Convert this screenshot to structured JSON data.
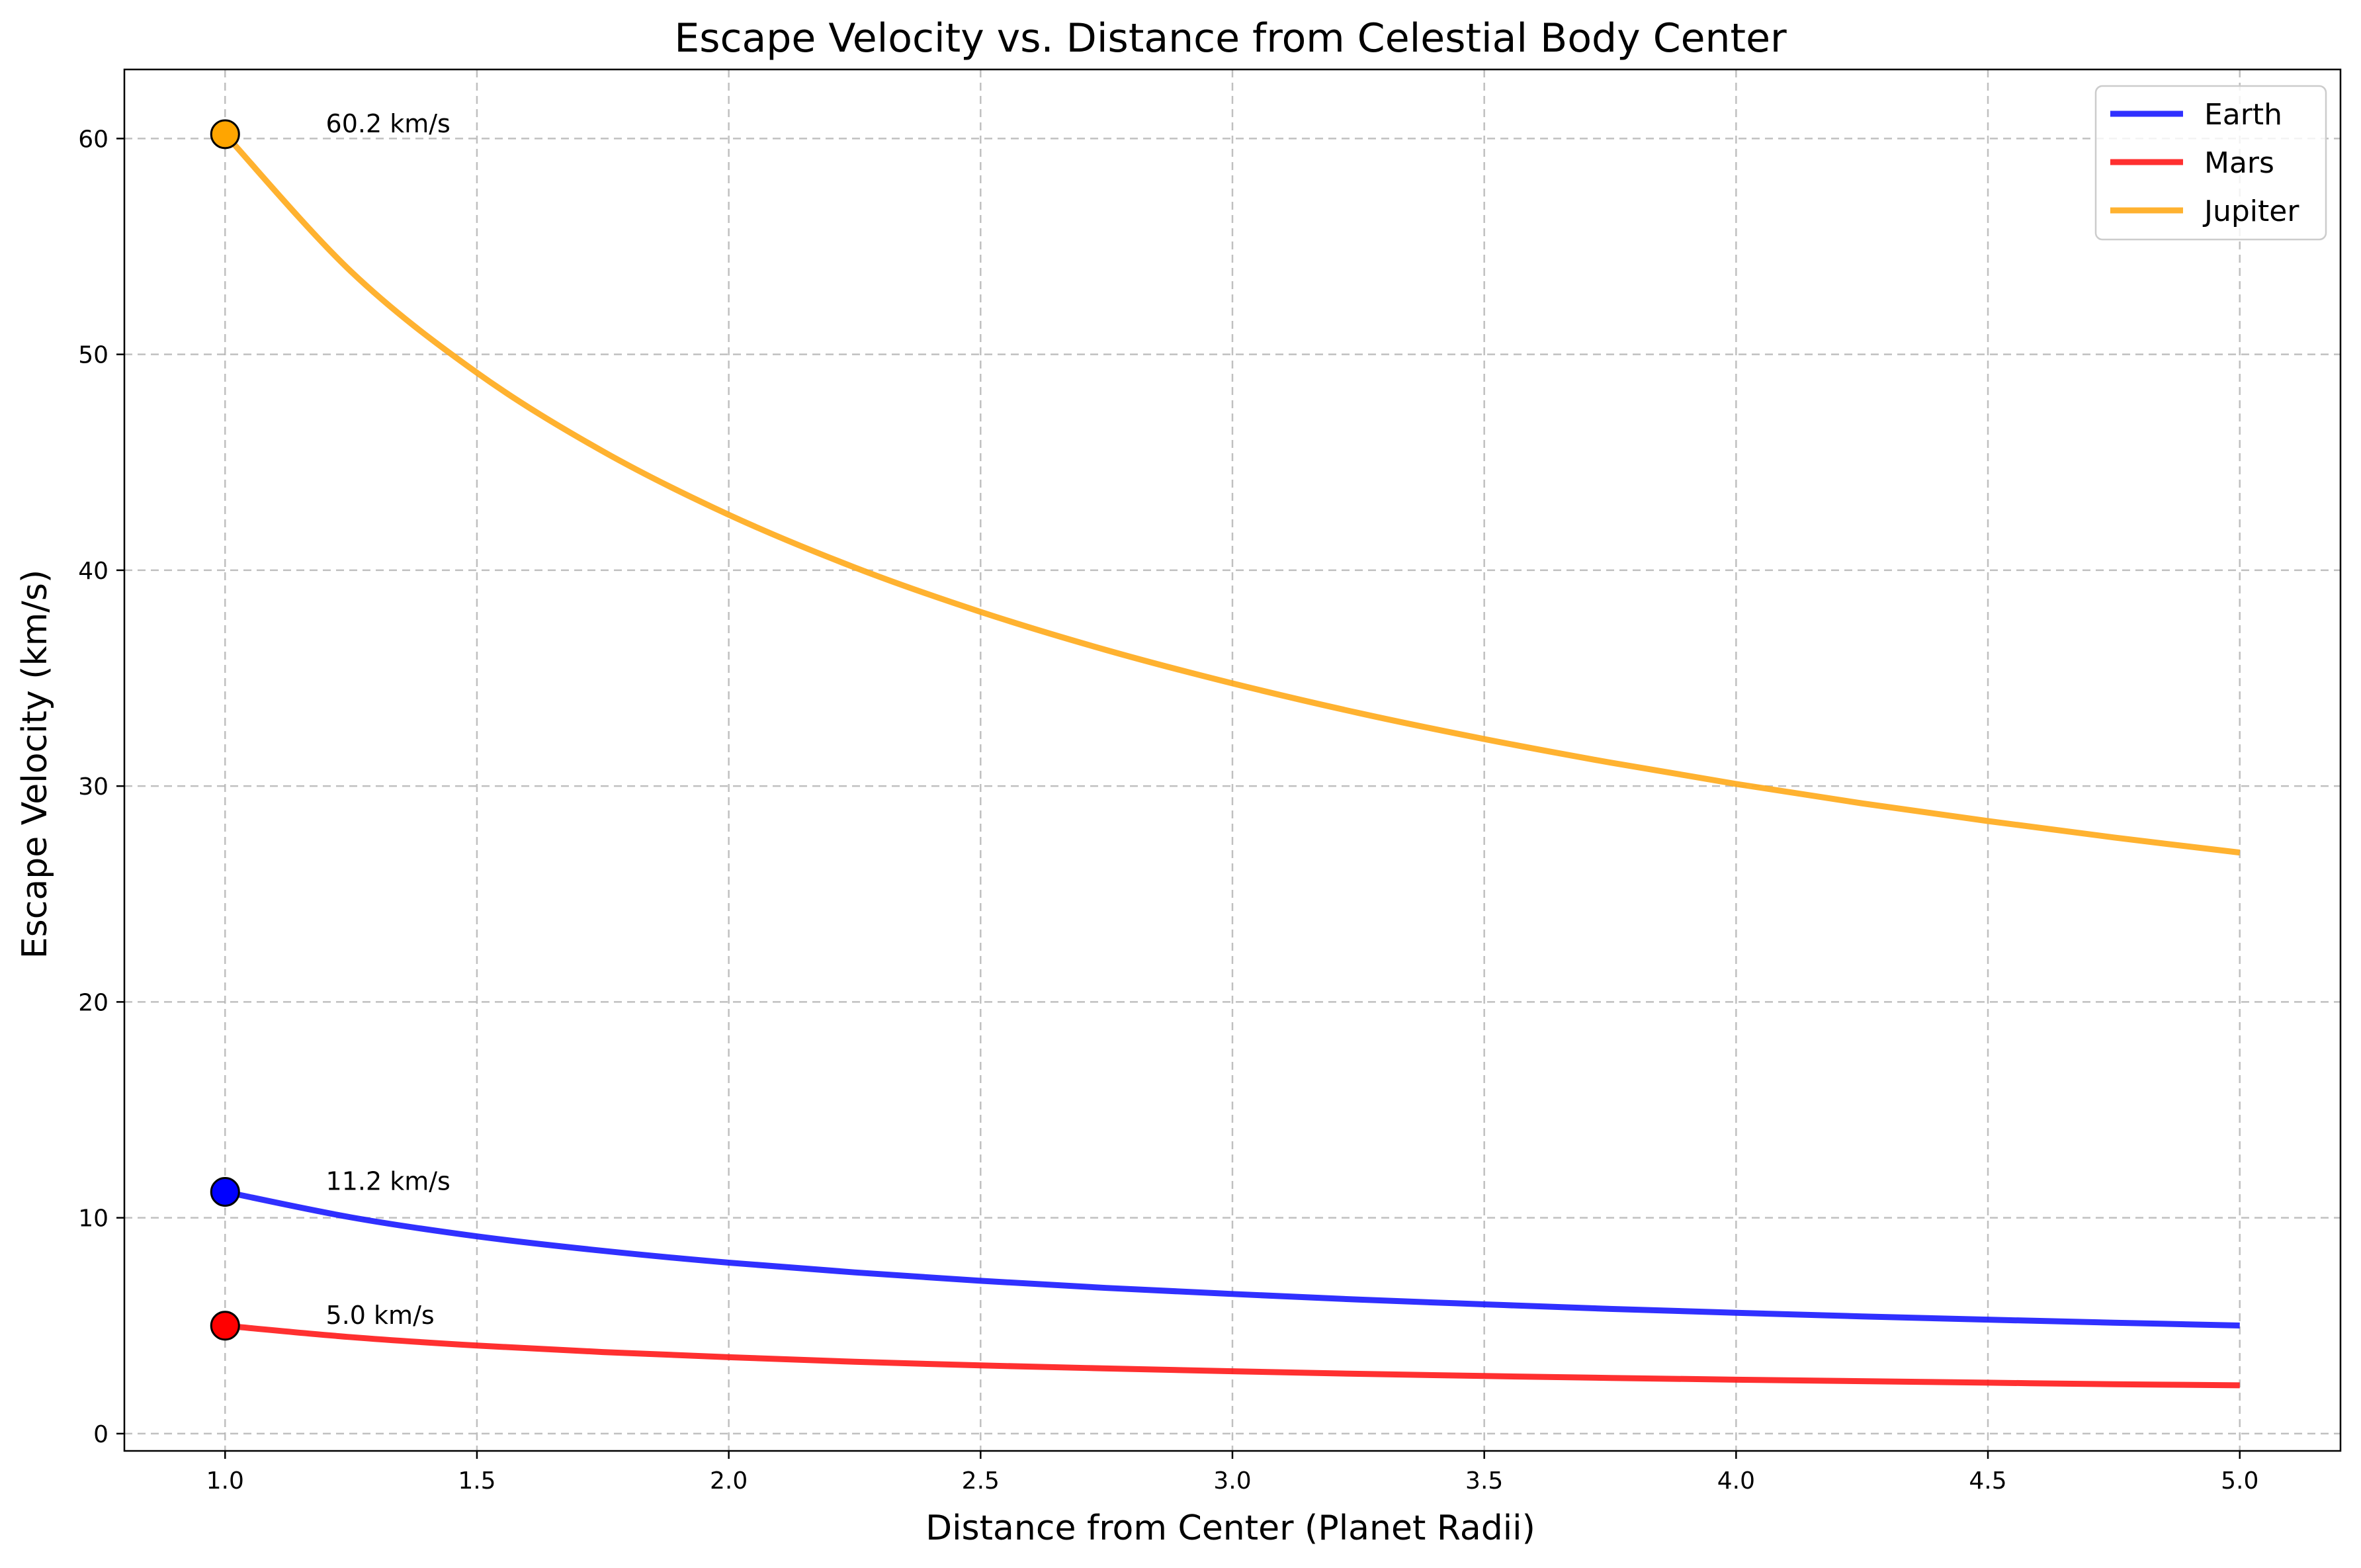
{
  "chart_data": {
    "type": "line",
    "title": "Escape Velocity vs. Distance from Celestial Body Center",
    "xlabel": "Distance from Center (Planet Radii)",
    "ylabel": "Escape Velocity (km/s)",
    "xlim": [
      0.8,
      5.2
    ],
    "ylim": [
      -0.8,
      63.2
    ],
    "x_ticks": [
      1.0,
      1.5,
      2.0,
      2.5,
      3.0,
      3.5,
      4.0,
      4.5,
      5.0
    ],
    "x_tick_labels": [
      "1.0",
      "1.5",
      "2.0",
      "2.5",
      "3.0",
      "3.5",
      "4.0",
      "4.5",
      "5.0"
    ],
    "y_ticks": [
      0,
      10,
      20,
      30,
      40,
      50,
      60
    ],
    "y_tick_labels": [
      "0",
      "10",
      "20",
      "30",
      "40",
      "50",
      "60"
    ],
    "grid": true,
    "legend_position": "top-right",
    "x": [
      1.0,
      1.25,
      1.5,
      1.75,
      2.0,
      2.25,
      2.5,
      2.75,
      3.0,
      3.25,
      3.5,
      3.75,
      4.0,
      4.25,
      4.5,
      4.75,
      5.0
    ],
    "series": [
      {
        "name": "Earth",
        "color": "#1a1aff",
        "values": [
          11.2,
          10.02,
          9.14,
          8.47,
          7.92,
          7.47,
          7.08,
          6.75,
          6.47,
          6.21,
          5.99,
          5.78,
          5.6,
          5.43,
          5.28,
          5.14,
          5.01
        ],
        "marker": {
          "x": 1.0,
          "y": 11.2,
          "color": "#0000ff"
        },
        "annotation": {
          "text": "11.2 km/s",
          "x": 1.2,
          "y": 11.2
        }
      },
      {
        "name": "Mars",
        "color": "#ff1a1a",
        "values": [
          5.0,
          4.47,
          4.08,
          3.78,
          3.54,
          3.33,
          3.16,
          3.02,
          2.89,
          2.77,
          2.67,
          2.58,
          2.5,
          2.43,
          2.36,
          2.29,
          2.24
        ],
        "marker": {
          "x": 1.0,
          "y": 5.0,
          "color": "#ff0000"
        },
        "annotation": {
          "text": "5.0 km/s",
          "x": 1.2,
          "y": 5.0
        }
      },
      {
        "name": "Jupiter",
        "color": "#ffaa1a",
        "values": [
          60.2,
          53.84,
          49.15,
          45.51,
          42.57,
          40.13,
          38.07,
          36.3,
          34.76,
          33.39,
          32.18,
          31.09,
          30.1,
          29.2,
          28.38,
          27.62,
          26.92
        ],
        "marker": {
          "x": 1.0,
          "y": 60.2,
          "color": "#ffa500"
        },
        "annotation": {
          "text": "60.2 km/s",
          "x": 1.2,
          "y": 60.2
        }
      }
    ]
  }
}
